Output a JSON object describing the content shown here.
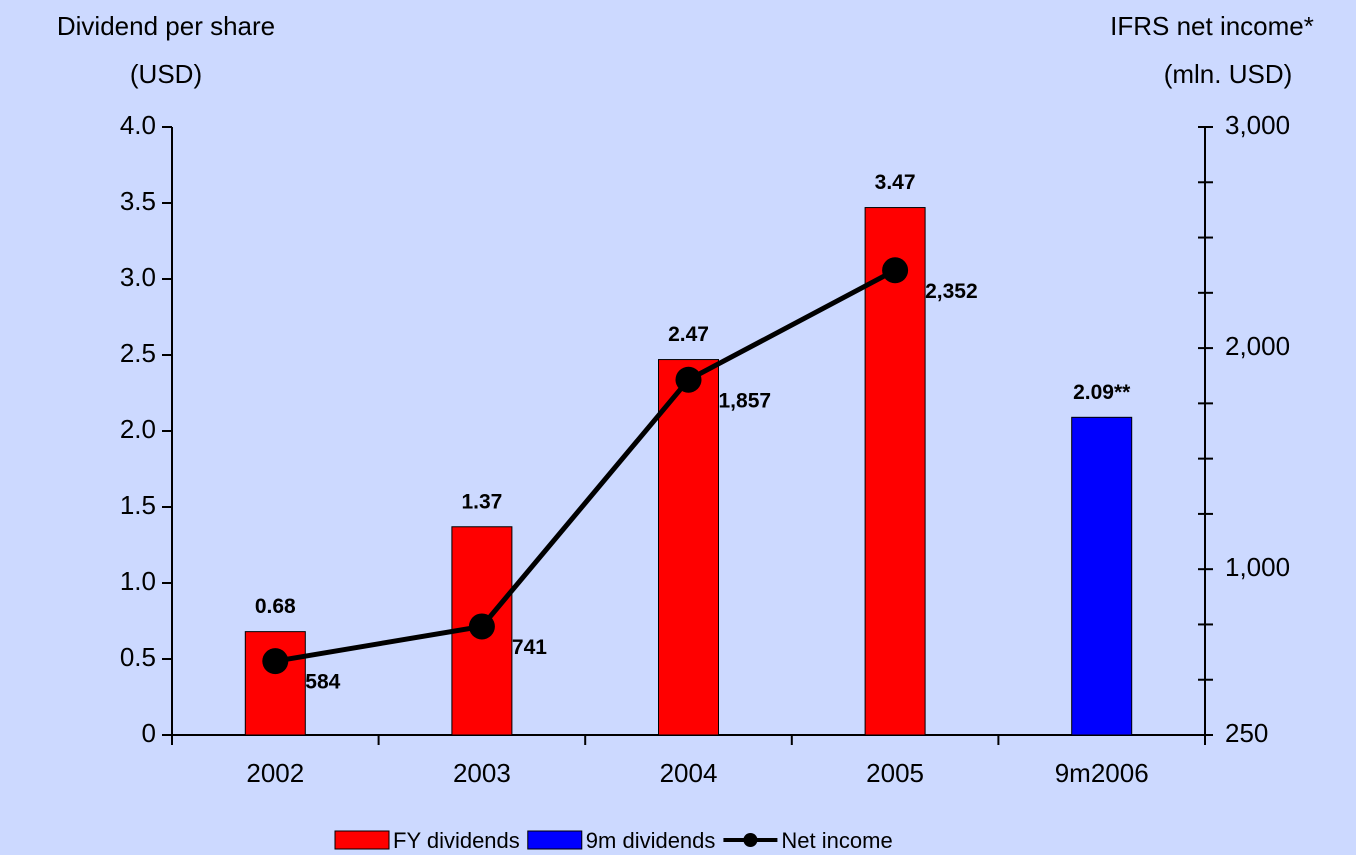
{
  "chart_data": {
    "type": "bar",
    "ylabel": [
      "Dividend per share",
      "(USD)"
    ],
    "y2label": [
      "IFRS net income*",
      "(mln. USD)"
    ],
    "categories": [
      "2002",
      "2003",
      "2004",
      "2005",
      "9m2006"
    ],
    "series": [
      {
        "name": "FY dividends",
        "type": "bar",
        "color": "#ff0000",
        "values": [
          0.68,
          1.37,
          2.47,
          3.47,
          null
        ],
        "value_labels": [
          "0.68",
          "1.37",
          "2.47",
          "3.47",
          null
        ]
      },
      {
        "name": "9m dividends",
        "type": "bar",
        "color": "#0000ff",
        "values": [
          null,
          null,
          null,
          null,
          2.09
        ],
        "value_labels": [
          null,
          null,
          null,
          null,
          "2.09**"
        ]
      },
      {
        "name": "Net income",
        "type": "line",
        "axis": "y2",
        "color": "#000000",
        "values": [
          584,
          741,
          1857,
          2352,
          null
        ],
        "value_labels": [
          "584",
          "741",
          "1,857",
          "2,352",
          null
        ]
      }
    ],
    "ylim": [
      0,
      4
    ],
    "yticks": [
      0,
      0.5,
      {
        "value": 1,
        "label": "1.0"
      },
      1.5,
      {
        "value": 2,
        "label": "2.0"
      },
      2.5,
      {
        "value": 3,
        "label": "3.0"
      },
      3.5,
      {
        "value": 4,
        "label": "4.0"
      }
    ],
    "y2lim": [
      250,
      3000
    ],
    "y2ticks": [
      250,
      {
        "value": 1000,
        "label": "1,000"
      },
      {
        "value": 2000,
        "label": "2,000"
      },
      {
        "value": 3000,
        "label": "3,000"
      }
    ],
    "y2minor_ticks": [
      500,
      750,
      1250,
      1500,
      1750,
      2250,
      2500,
      2750
    ],
    "legend": "bottom"
  }
}
